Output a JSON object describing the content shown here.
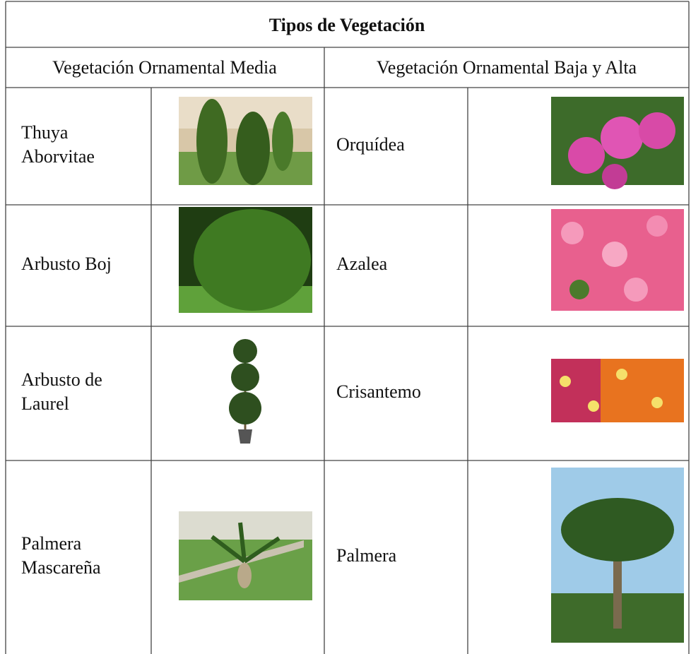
{
  "table": {
    "title": "Tipos de Vegetación",
    "headers": [
      "Vegetación Ornamental Media",
      "Vegetación Ornamental Baja y Alta"
    ],
    "rows": [
      [
        [
          "Thuya",
          "Aborvitae"
        ],
        [
          "Orquídea"
        ]
      ],
      [
        [
          "Arbusto Boj"
        ],
        [
          "Azalea"
        ]
      ],
      [
        [
          "Arbusto de",
          "Laurel"
        ],
        [
          "Crisantemo"
        ]
      ],
      [
        [
          "Palmera",
          "Mascareña"
        ],
        [
          "Palmera"
        ]
      ]
    ]
  }
}
